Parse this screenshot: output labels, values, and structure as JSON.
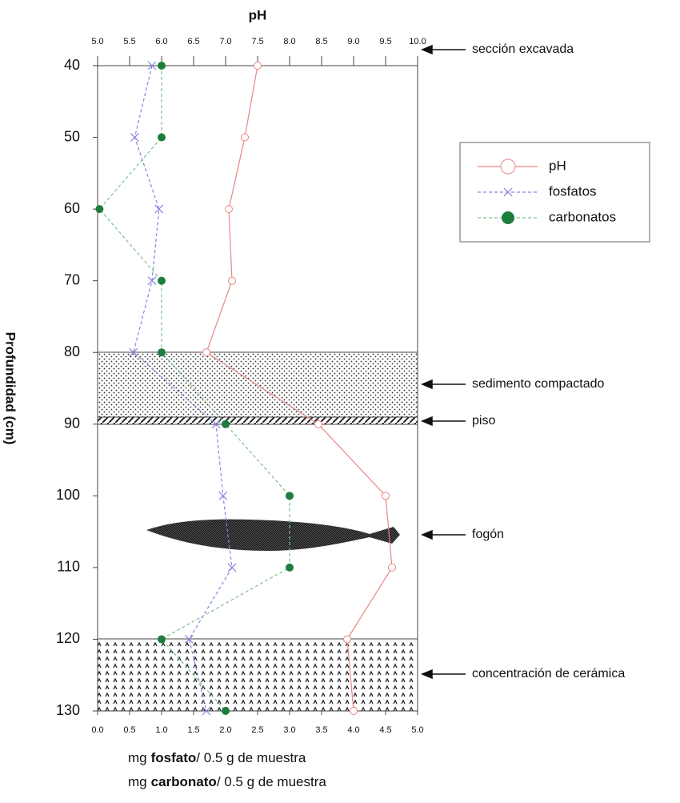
{
  "chart_data": {
    "type": "line",
    "x2_label": "pH",
    "y_label": "Profundidad (cm)",
    "x_label_lines": [
      {
        "pre": "mg",
        "bold": "fosfato",
        "post": "/ 0.5 g de muestra"
      },
      {
        "pre": "mg",
        "bold": "carbonato",
        "post": "/ 0.5 g de muestra"
      }
    ],
    "y": [
      40,
      50,
      60,
      70,
      80,
      90,
      100,
      110,
      120,
      130
    ],
    "ylim": [
      40,
      130
    ],
    "yticks": [
      40,
      50,
      60,
      70,
      80,
      90,
      100,
      110,
      120,
      130
    ],
    "xlim": [
      0,
      5
    ],
    "xticks": [
      {
        "value": 0,
        "label": "0.0"
      },
      0.5,
      {
        "value": 1,
        "label": "1.0"
      },
      1.5,
      {
        "value": 2,
        "label": "2.0"
      },
      2.5,
      {
        "value": 3,
        "label": "3.0"
      },
      3.5,
      {
        "value": 4,
        "label": "4.0"
      },
      4.5,
      {
        "value": 5,
        "label": "5.0"
      }
    ],
    "x2lim": [
      5,
      10
    ],
    "x2ticks": [
      {
        "value": 5,
        "label": "5.0"
      },
      5.5,
      {
        "value": 6,
        "label": "6.0"
      },
      6.5,
      {
        "value": 7,
        "label": "7.0"
      },
      7.5,
      {
        "value": 8,
        "label": "8.0"
      },
      8.5,
      {
        "value": 9,
        "label": "9.0"
      },
      9.5,
      {
        "value": 10,
        "label": "10.0"
      }
    ],
    "series": [
      {
        "name": "pH",
        "color": "#e98585",
        "axis": "x2",
        "marker": "open-circle",
        "dash": false,
        "values": [
          7.5,
          7.3,
          7.05,
          7.1,
          6.7,
          8.45,
          9.5,
          9.6,
          8.9,
          9.0
        ]
      },
      {
        "name": "fosfatos",
        "color": "#8585e0",
        "axis": "x",
        "marker": "cross",
        "dash": true,
        "values": [
          0.85,
          0.58,
          0.96,
          0.85,
          0.56,
          1.85,
          1.96,
          2.1,
          1.43,
          1.7
        ]
      },
      {
        "name": "carbonatos",
        "color": "#1c7d3c",
        "line_color": "#7cc08a",
        "axis": "x",
        "marker": "dot",
        "dash": true,
        "values": [
          1.0,
          1.0,
          0.03,
          1.0,
          1.0,
          2.0,
          3.0,
          3.0,
          1.0,
          2.0
        ]
      }
    ],
    "annotations": [
      "sección excavada",
      "sedimento compactado",
      "piso",
      "fogón",
      "concentración de cerámica"
    ]
  }
}
